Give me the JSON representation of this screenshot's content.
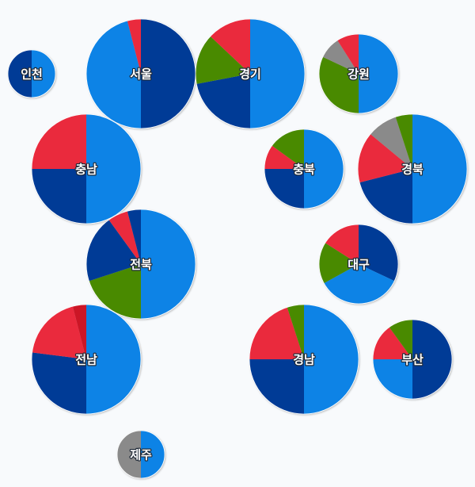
{
  "chart_data": {
    "type": "pie",
    "subtype": "pie-map",
    "colors": {
      "blue_light": "#0b83e6",
      "blue_dark": "#023a96",
      "red": "#ea2a3e",
      "green": "#4a8a06",
      "gray": "#8a8a8a",
      "crimson": "#cc1326"
    },
    "regions": [
      {
        "name": "인천",
        "slices": [
          {
            "color": "blue_light",
            "value": 0.5
          },
          {
            "color": "blue_dark",
            "value": 0.5
          }
        ]
      },
      {
        "name": "서울",
        "slices": [
          {
            "color": "blue_dark",
            "value": 0.5
          },
          {
            "color": "blue_light",
            "value": 0.46
          },
          {
            "color": "red",
            "value": 0.04
          }
        ]
      },
      {
        "name": "경기",
        "slices": [
          {
            "color": "blue_light",
            "value": 0.5
          },
          {
            "color": "blue_dark",
            "value": 0.22
          },
          {
            "color": "green",
            "value": 0.15
          },
          {
            "color": "red",
            "value": 0.13
          }
        ]
      },
      {
        "name": "강원",
        "slices": [
          {
            "color": "blue_light",
            "value": 0.5
          },
          {
            "color": "green",
            "value": 0.32
          },
          {
            "color": "gray",
            "value": 0.09
          },
          {
            "color": "red",
            "value": 0.09
          }
        ]
      },
      {
        "name": "충남",
        "slices": [
          {
            "color": "blue_light",
            "value": 0.5
          },
          {
            "color": "blue_dark",
            "value": 0.25
          },
          {
            "color": "red",
            "value": 0.25
          }
        ]
      },
      {
        "name": "충북",
        "slices": [
          {
            "color": "blue_light",
            "value": 0.5
          },
          {
            "color": "blue_dark",
            "value": 0.25
          },
          {
            "color": "red",
            "value": 0.1
          },
          {
            "color": "green",
            "value": 0.15
          }
        ]
      },
      {
        "name": "경북",
        "slices": [
          {
            "color": "blue_light",
            "value": 0.5
          },
          {
            "color": "blue_dark",
            "value": 0.21
          },
          {
            "color": "red",
            "value": 0.15
          },
          {
            "color": "gray",
            "value": 0.09
          },
          {
            "color": "green",
            "value": 0.05
          }
        ]
      },
      {
        "name": "전북",
        "slices": [
          {
            "color": "blue_light",
            "value": 0.5
          },
          {
            "color": "green",
            "value": 0.2
          },
          {
            "color": "blue_dark",
            "value": 0.2
          },
          {
            "color": "red",
            "value": 0.06
          },
          {
            "color": "blue_dark",
            "value": 0.04
          }
        ]
      },
      {
        "name": "대구",
        "slices": [
          {
            "color": "blue_dark",
            "value": 0.32
          },
          {
            "color": "blue_light",
            "value": 0.35
          },
          {
            "color": "green",
            "value": 0.17
          },
          {
            "color": "red",
            "value": 0.16
          }
        ]
      },
      {
        "name": "전남",
        "slices": [
          {
            "color": "blue_light",
            "value": 0.5
          },
          {
            "color": "blue_dark",
            "value": 0.27
          },
          {
            "color": "red",
            "value": 0.19
          },
          {
            "color": "crimson",
            "value": 0.04
          }
        ]
      },
      {
        "name": "경남",
        "slices": [
          {
            "color": "blue_light",
            "value": 0.5
          },
          {
            "color": "blue_dark",
            "value": 0.25
          },
          {
            "color": "red",
            "value": 0.2
          },
          {
            "color": "green",
            "value": 0.05
          }
        ]
      },
      {
        "name": "부산",
        "slices": [
          {
            "color": "blue_dark",
            "value": 0.5
          },
          {
            "color": "blue_light",
            "value": 0.25
          },
          {
            "color": "red",
            "value": 0.15
          },
          {
            "color": "green",
            "value": 0.1
          }
        ]
      },
      {
        "name": "제주",
        "slices": [
          {
            "color": "blue_light",
            "value": 0.5
          },
          {
            "color": "gray",
            "value": 0.5
          }
        ]
      }
    ]
  }
}
